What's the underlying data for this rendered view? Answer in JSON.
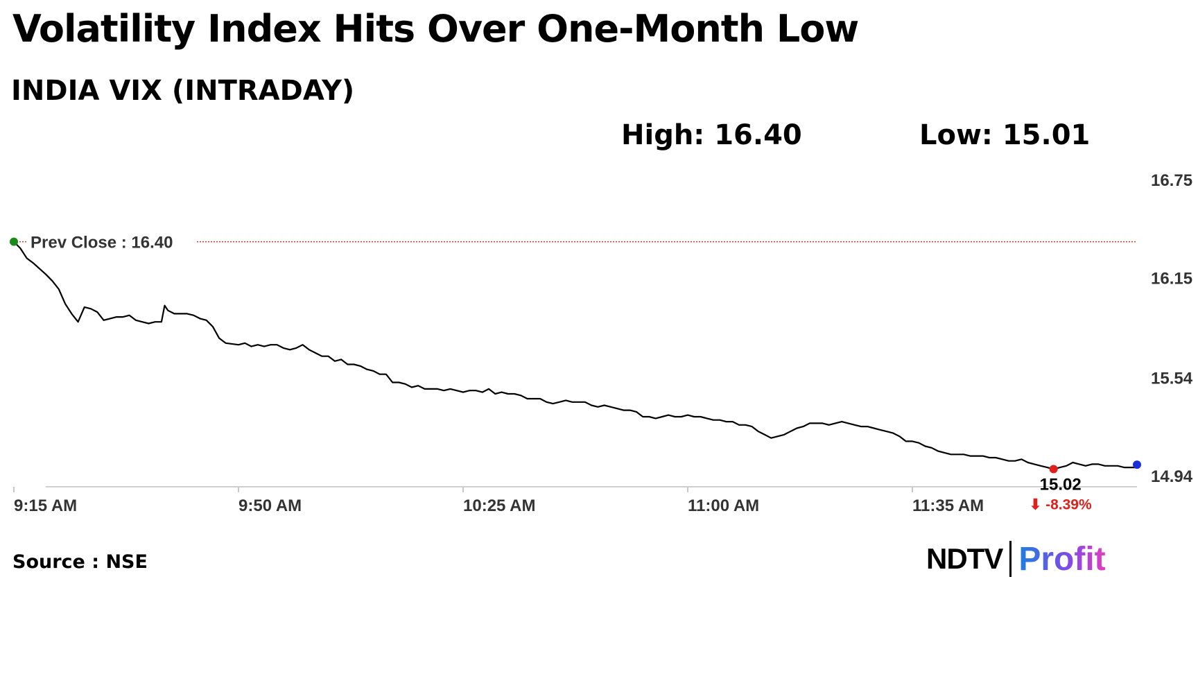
{
  "header": {
    "title": "Volatility Index Hits Over One-Month Low",
    "subtitle": "INDIA VIX (INTRADAY)",
    "high_label": "High: 16.40",
    "low_label": "Low: 15.01"
  },
  "footer": {
    "source": "Source : NSE",
    "logo_left": "NDTV",
    "logo_right": "Profit"
  },
  "colors": {
    "line": "#000000",
    "prev_close_line": "#c0392b",
    "start_marker": "#1a8a1a",
    "low_marker": "#e0201b",
    "end_marker": "#1b2fd6",
    "change_text": "#e0201b"
  },
  "chart_data": {
    "type": "line",
    "xlabel": "",
    "ylabel": "",
    "x_ticks": [
      "9:15 AM",
      "9:50 AM",
      "10:25 AM",
      "11:00 AM",
      "11:35 AM"
    ],
    "x_tick_minutes": [
      0,
      35,
      70,
      105,
      140
    ],
    "y_ticks": [
      16.75,
      16.15,
      15.54,
      14.94
    ],
    "ylim": [
      14.94,
      16.75
    ],
    "xlim_minutes": [
      0,
      175
    ],
    "grid": false,
    "prev_close": {
      "label": "Prev Close : 16.40",
      "value": 16.4
    },
    "last_value_label": "15.02",
    "change_label": "⬇ -8.39%",
    "series": [
      {
        "x_minutes": [
          0,
          1,
          2,
          3,
          5,
          6,
          7,
          8,
          9,
          10,
          11,
          12,
          13,
          14,
          15,
          16,
          17,
          18,
          19,
          20,
          21,
          22,
          23,
          23.5,
          24,
          25,
          26,
          27,
          28,
          29,
          30,
          31,
          32,
          33,
          35,
          36,
          37,
          38,
          39,
          40,
          41,
          42,
          43,
          44,
          45,
          46,
          47,
          48,
          49,
          50,
          51,
          52,
          53,
          54,
          55,
          56,
          57,
          58,
          59,
          60,
          61,
          62,
          63,
          64,
          65,
          66,
          67,
          68,
          69,
          70,
          71,
          72,
          73,
          74,
          75,
          76,
          77,
          78,
          79,
          80,
          81,
          82,
          83,
          84,
          85,
          86,
          87,
          88,
          89,
          90,
          91,
          92,
          93,
          94,
          95,
          96,
          97,
          98,
          99,
          100,
          101,
          102,
          103,
          104,
          105,
          106,
          107,
          108,
          109,
          110,
          111,
          112,
          113,
          114,
          115,
          116,
          117,
          118,
          119,
          120,
          121,
          122,
          123,
          124,
          125,
          126,
          127,
          128,
          129,
          130,
          131,
          132,
          133,
          134,
          135,
          136,
          137,
          138,
          139,
          140,
          141,
          142,
          143,
          144,
          145,
          146,
          147,
          148,
          149,
          150,
          151,
          152,
          153,
          154,
          155,
          156,
          157,
          158,
          159,
          160,
          161,
          162,
          163,
          164,
          165,
          166,
          167,
          168,
          169,
          170,
          171,
          172,
          173,
          174,
          175
        ],
        "values": [
          16.4,
          16.36,
          16.3,
          16.27,
          16.2,
          16.16,
          16.11,
          16.02,
          15.96,
          15.91,
          16.0,
          15.99,
          15.97,
          15.92,
          15.93,
          15.94,
          15.94,
          15.95,
          15.92,
          15.91,
          15.9,
          15.91,
          15.91,
          16.01,
          15.98,
          15.96,
          15.96,
          15.96,
          15.95,
          15.93,
          15.92,
          15.88,
          15.81,
          15.78,
          15.77,
          15.78,
          15.76,
          15.77,
          15.76,
          15.77,
          15.77,
          15.75,
          15.74,
          15.75,
          15.77,
          15.74,
          15.72,
          15.7,
          15.7,
          15.67,
          15.68,
          15.65,
          15.65,
          15.64,
          15.62,
          15.61,
          15.59,
          15.59,
          15.54,
          15.54,
          15.53,
          15.51,
          15.52,
          15.5,
          15.5,
          15.5,
          15.49,
          15.5,
          15.49,
          15.48,
          15.49,
          15.49,
          15.48,
          15.5,
          15.47,
          15.48,
          15.47,
          15.47,
          15.46,
          15.44,
          15.44,
          15.44,
          15.42,
          15.41,
          15.42,
          15.43,
          15.42,
          15.42,
          15.42,
          15.4,
          15.39,
          15.4,
          15.39,
          15.38,
          15.37,
          15.37,
          15.36,
          15.33,
          15.33,
          15.32,
          15.33,
          15.34,
          15.33,
          15.33,
          15.34,
          15.33,
          15.33,
          15.32,
          15.31,
          15.31,
          15.3,
          15.3,
          15.28,
          15.28,
          15.27,
          15.24,
          15.22,
          15.2,
          15.21,
          15.22,
          15.24,
          15.26,
          15.27,
          15.29,
          15.29,
          15.29,
          15.28,
          15.29,
          15.3,
          15.29,
          15.28,
          15.27,
          15.27,
          15.26,
          15.25,
          15.24,
          15.23,
          15.21,
          15.18,
          15.18,
          15.17,
          15.15,
          15.14,
          15.12,
          15.11,
          15.1,
          15.1,
          15.1,
          15.09,
          15.09,
          15.09,
          15.08,
          15.08,
          15.07,
          15.06,
          15.06,
          15.07,
          15.05,
          15.04,
          15.03,
          15.02,
          15.01,
          15.02,
          15.03,
          15.05,
          15.04,
          15.03,
          15.04,
          15.04,
          15.03,
          15.03,
          15.03,
          15.02,
          15.02,
          15.02
        ]
      }
    ]
  }
}
